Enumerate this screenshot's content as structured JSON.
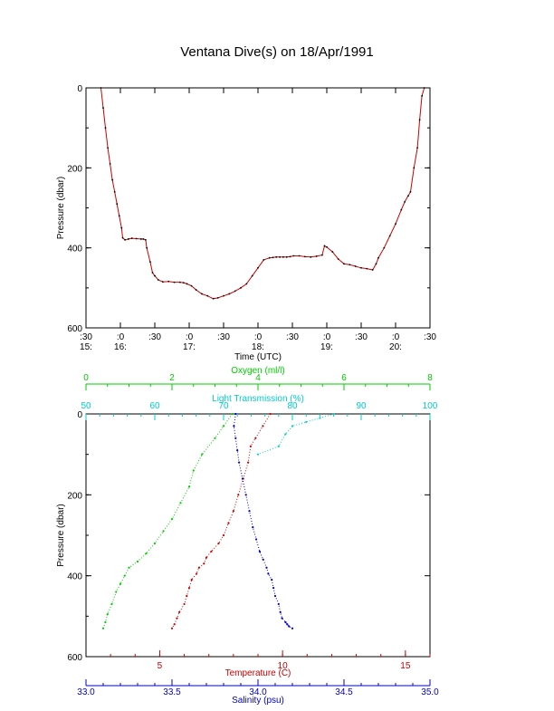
{
  "figure": {
    "title": "Ventana Dive(s) on 18/Apr/1991"
  },
  "colors": {
    "depth_trace": "#cc0000",
    "depth_trace_dots": "#000000",
    "temperature": "#cc0000",
    "salinity": "#0000cc",
    "oxygen": "#00cc00",
    "light_transmission": "#00cccc",
    "axes": "#000000"
  },
  "chart_data": [
    {
      "type": "line",
      "title": "Ventana Dive(s) on 18/Apr/1991",
      "xlabel": "Time (UTC)",
      "ylabel": "Pressure (dbar)",
      "x_unit": "minutes after 15:00 UTC",
      "xlim": [
        30,
        330
      ],
      "ylim": [
        600,
        0
      ],
      "y_ticks": [
        0,
        200,
        400,
        600
      ],
      "x_ticks": [
        {
          "value": 30,
          "top": ":30",
          "bottom": "15:"
        },
        {
          "value": 60,
          "top": ":0",
          "bottom": "16:"
        },
        {
          "value": 90,
          "top": ":30",
          "bottom": ""
        },
        {
          "value": 120,
          "top": ":0",
          "bottom": "17:"
        },
        {
          "value": 150,
          "top": ":30",
          "bottom": ""
        },
        {
          "value": 180,
          "top": ":0",
          "bottom": "18:"
        },
        {
          "value": 210,
          "top": ":30",
          "bottom": ""
        },
        {
          "value": 240,
          "top": ":0",
          "bottom": "19:"
        },
        {
          "value": 270,
          "top": ":30",
          "bottom": ""
        },
        {
          "value": 300,
          "top": ":0",
          "bottom": "20:"
        },
        {
          "value": 330,
          "top": ":30",
          "bottom": ""
        }
      ],
      "grid": false,
      "series": [
        {
          "x": [
            43,
            45,
            47,
            49,
            51,
            53,
            55,
            57,
            59,
            61,
            62,
            64,
            67,
            70,
            74,
            78,
            80,
            82,
            83,
            86,
            88,
            90,
            93,
            97,
            102,
            107,
            112,
            115,
            118,
            122,
            126,
            131,
            136,
            141,
            145,
            150,
            155,
            160,
            165,
            170,
            175,
            180,
            185,
            190,
            193,
            196,
            199,
            202,
            205,
            208,
            211,
            216,
            221,
            226,
            231,
            236,
            238,
            240,
            245,
            250,
            255,
            260,
            265,
            270,
            275,
            280,
            283,
            285,
            290,
            295,
            300,
            305,
            308,
            311,
            313,
            316,
            319,
            321,
            323,
            325
          ],
          "y": [
            0,
            50,
            100,
            150,
            190,
            230,
            260,
            290,
            320,
            350,
            375,
            380,
            378,
            376,
            377,
            378,
            378,
            380,
            400,
            435,
            462,
            470,
            480,
            485,
            484,
            486,
            486,
            487,
            490,
            495,
            505,
            515,
            520,
            527,
            525,
            520,
            515,
            508,
            500,
            490,
            470,
            450,
            430,
            425,
            424,
            423,
            423,
            423,
            423,
            422,
            420,
            420,
            422,
            423,
            421,
            418,
            395,
            398,
            410,
            428,
            440,
            442,
            446,
            450,
            452,
            455,
            440,
            425,
            400,
            370,
            340,
            305,
            285,
            270,
            260,
            200,
            150,
            80,
            20,
            0
          ]
        }
      ]
    },
    {
      "type": "scatter",
      "ylabel": "Pressure (dbar)",
      "ylim": [
        600,
        0
      ],
      "y_ticks": [
        0,
        200,
        400,
        600
      ],
      "grid": false,
      "axes": {
        "temperature": {
          "label": "Temperature (C)",
          "range": [
            2,
            16
          ],
          "ticks": [
            5,
            10,
            15
          ],
          "position": "bottom"
        },
        "salinity": {
          "label": "Salinity (psu)",
          "range": [
            33.0,
            35.0
          ],
          "ticks": [
            33.0,
            33.5,
            34.0,
            34.5,
            35.0
          ],
          "position": "bottom"
        },
        "oxygen": {
          "label": "Oxygen (ml/l)",
          "range": [
            0,
            8
          ],
          "ticks": [
            0,
            2,
            4,
            6,
            8
          ],
          "position": "top"
        },
        "light_transmission": {
          "label": "Light Transmission (%)",
          "range": [
            50,
            100
          ],
          "ticks": [
            50,
            60,
            70,
            80,
            90,
            100
          ],
          "position": "top"
        }
      },
      "series": [
        {
          "name": "Temperature (C)",
          "axis": "temperature",
          "x": [
            9.5,
            9.2,
            8.9,
            8.7,
            8.6,
            8.4,
            8.2,
            8.0,
            7.8,
            7.6,
            7.4,
            7.1,
            6.9,
            6.8,
            6.6,
            6.5,
            6.3,
            6.2,
            6.1,
            6.0,
            5.8,
            5.7,
            5.6,
            5.5
          ],
          "y": [
            0,
            30,
            60,
            80,
            120,
            160,
            200,
            240,
            270,
            300,
            320,
            340,
            355,
            370,
            380,
            395,
            410,
            430,
            450,
            470,
            490,
            505,
            520,
            530
          ]
        },
        {
          "name": "Salinity (psu)",
          "axis": "salinity",
          "x": [
            33.87,
            33.86,
            33.87,
            33.88,
            33.89,
            33.91,
            33.93,
            33.95,
            33.97,
            33.99,
            34.01,
            34.03,
            34.05,
            34.06,
            34.08,
            34.09,
            34.1,
            34.12,
            34.13,
            34.14,
            34.16,
            34.17,
            34.18,
            34.2
          ],
          "y": [
            0,
            30,
            60,
            90,
            120,
            160,
            200,
            240,
            280,
            310,
            340,
            360,
            380,
            395,
            410,
            430,
            450,
            470,
            490,
            505,
            515,
            520,
            525,
            530
          ]
        },
        {
          "name": "Oxygen (ml/l)",
          "axis": "oxygen",
          "x": [
            3.4,
            3.2,
            3.0,
            2.7,
            2.5,
            2.4,
            2.2,
            2.0,
            1.8,
            1.6,
            1.4,
            1.2,
            1.0,
            0.9,
            0.8,
            0.7,
            0.6,
            0.5,
            0.45,
            0.4
          ],
          "y": [
            0,
            30,
            60,
            100,
            140,
            180,
            220,
            260,
            290,
            320,
            345,
            365,
            380,
            400,
            420,
            440,
            470,
            495,
            515,
            530
          ]
        },
        {
          "name": "Light Transmission (%)",
          "axis": "light_transmission",
          "x": [
            86,
            84,
            82,
            80,
            79,
            78,
            75
          ],
          "y": [
            0,
            10,
            20,
            30,
            50,
            80,
            100
          ]
        }
      ]
    }
  ]
}
